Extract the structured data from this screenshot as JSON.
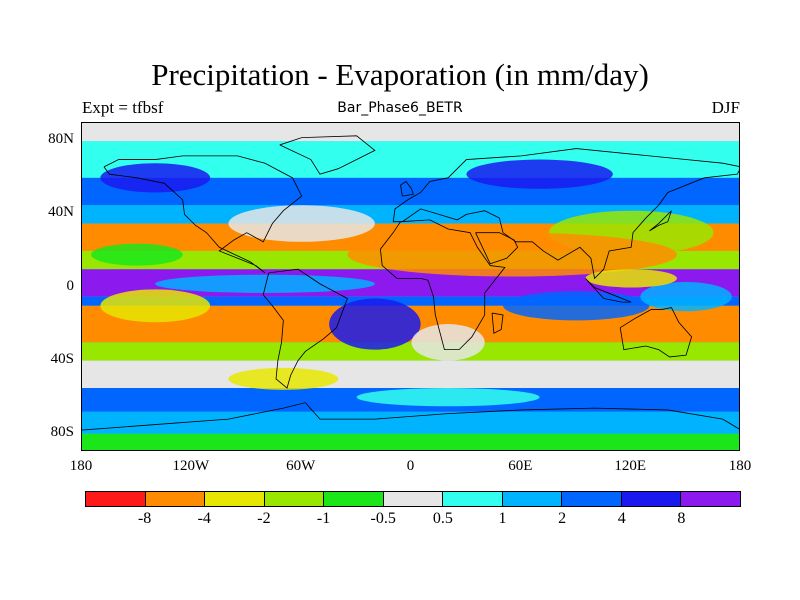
{
  "header": {
    "title": "Precipitation - Evaporation (in mm/day)",
    "subtitle": "Bar_Phase6_BETR",
    "left_note": "Expt = tfbsf",
    "right_note": "DJF"
  },
  "chart_data": {
    "type": "heatmap",
    "title": "Precipitation - Evaporation (in mm/day)",
    "xlabel": "",
    "ylabel": "",
    "xlim": [
      -180,
      180
    ],
    "ylim": [
      -90,
      90
    ],
    "x_ticks": [
      "180",
      "120W",
      "60W",
      "0",
      "60E",
      "120E",
      "180"
    ],
    "y_ticks": [
      "80N",
      "40N",
      "0",
      "40S",
      "80S"
    ],
    "colorbar": {
      "colors": [
        "#ff1a1a",
        "#ff8c00",
        "#e6e600",
        "#99e600",
        "#1ae61a",
        "#e6e6e6",
        "#33ffee",
        "#00b3ff",
        "#0066ff",
        "#1a1aee",
        "#8c1aee"
      ],
      "labels": [
        "-8",
        "-4",
        "-2",
        "-1",
        "-0.5",
        "0.5",
        "1",
        "2",
        "4",
        "8"
      ]
    },
    "regions": [
      {
        "lat_range": [
          90,
          80
        ],
        "color": "#e6e6e6"
      },
      {
        "lat_range": [
          80,
          60
        ],
        "color": "#33ffee"
      },
      {
        "lat_range": [
          60,
          45
        ],
        "color": "#0066ff"
      },
      {
        "lat_range": [
          45,
          35
        ],
        "color": "#00b3ff"
      },
      {
        "lat_range": [
          35,
          20
        ],
        "color": "#ff8c00"
      },
      {
        "lat_range": [
          20,
          10
        ],
        "color": "#99e600"
      },
      {
        "lat_range": [
          10,
          -5
        ],
        "color": "#8c1aee"
      },
      {
        "lat_range": [
          -5,
          -10
        ],
        "color": "#0066ff"
      },
      {
        "lat_range": [
          -10,
          -30
        ],
        "color": "#ff8c00"
      },
      {
        "lat_range": [
          -30,
          -40
        ],
        "color": "#99e600"
      },
      {
        "lat_range": [
          -40,
          -55
        ],
        "color": "#e6e6e6"
      },
      {
        "lat_range": [
          -55,
          -68
        ],
        "color": "#0066ff"
      },
      {
        "lat_range": [
          -68,
          -80
        ],
        "color": "#00b3ff"
      },
      {
        "lat_range": [
          -80,
          -90
        ],
        "color": "#1ae61a"
      }
    ]
  }
}
